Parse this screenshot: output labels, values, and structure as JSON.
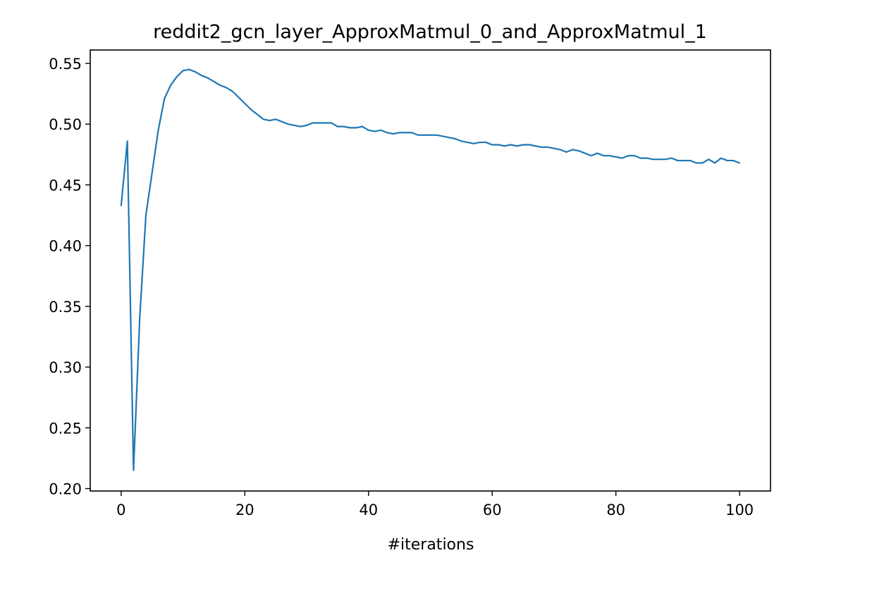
{
  "chart_data": {
    "type": "line",
    "title": "reddit2_gcn_layer_ApproxMatmul_0_and_ApproxMatmul_1",
    "xlabel": "#iterations",
    "ylabel": "",
    "xlim": [
      -5,
      105
    ],
    "ylim": [
      0.198,
      0.561
    ],
    "xticks": [
      0,
      20,
      40,
      60,
      80,
      100
    ],
    "xtick_labels": [
      "0",
      "20",
      "40",
      "60",
      "80",
      "100"
    ],
    "yticks": [
      0.2,
      0.25,
      0.3,
      0.35,
      0.4,
      0.45,
      0.5,
      0.55
    ],
    "ytick_labels": [
      "0.20",
      "0.25",
      "0.30",
      "0.35",
      "0.40",
      "0.45",
      "0.50",
      "0.55"
    ],
    "grid": false,
    "line_color": "#1f77b4",
    "series": [
      {
        "name": "",
        "x": [
          0,
          1,
          2,
          3,
          4,
          5,
          6,
          7,
          8,
          9,
          10,
          11,
          12,
          13,
          14,
          15,
          16,
          17,
          18,
          19,
          20,
          21,
          22,
          23,
          24,
          25,
          26,
          27,
          28,
          29,
          30,
          31,
          32,
          33,
          34,
          35,
          36,
          37,
          38,
          39,
          40,
          41,
          42,
          43,
          44,
          45,
          46,
          47,
          48,
          49,
          50,
          51,
          52,
          53,
          54,
          55,
          56,
          57,
          58,
          59,
          60,
          61,
          62,
          63,
          64,
          65,
          66,
          67,
          68,
          69,
          70,
          71,
          72,
          73,
          74,
          75,
          76,
          77,
          78,
          79,
          80,
          81,
          82,
          83,
          84,
          85,
          86,
          87,
          88,
          89,
          90,
          91,
          92,
          93,
          94,
          95,
          96,
          97,
          98,
          99,
          100
        ],
        "y": [
          0.433,
          0.486,
          0.215,
          0.34,
          0.425,
          0.46,
          0.495,
          0.521,
          0.532,
          0.539,
          0.544,
          0.545,
          0.543,
          0.54,
          0.538,
          0.535,
          0.532,
          0.53,
          0.527,
          0.522,
          0.517,
          0.512,
          0.508,
          0.504,
          0.503,
          0.504,
          0.502,
          0.5,
          0.499,
          0.498,
          0.499,
          0.501,
          0.501,
          0.501,
          0.501,
          0.498,
          0.498,
          0.497,
          0.497,
          0.498,
          0.495,
          0.494,
          0.495,
          0.493,
          0.492,
          0.493,
          0.493,
          0.493,
          0.491,
          0.491,
          0.491,
          0.491,
          0.49,
          0.489,
          0.488,
          0.486,
          0.485,
          0.484,
          0.485,
          0.485,
          0.483,
          0.483,
          0.482,
          0.483,
          0.482,
          0.483,
          0.483,
          0.482,
          0.481,
          0.481,
          0.48,
          0.479,
          0.477,
          0.479,
          0.478,
          0.476,
          0.474,
          0.476,
          0.474,
          0.474,
          0.473,
          0.472,
          0.474,
          0.474,
          0.472,
          0.472,
          0.471,
          0.471,
          0.471,
          0.472,
          0.47,
          0.47,
          0.47,
          0.468,
          0.468,
          0.471,
          0.468,
          0.472,
          0.47,
          0.47,
          0.468
        ]
      }
    ]
  }
}
